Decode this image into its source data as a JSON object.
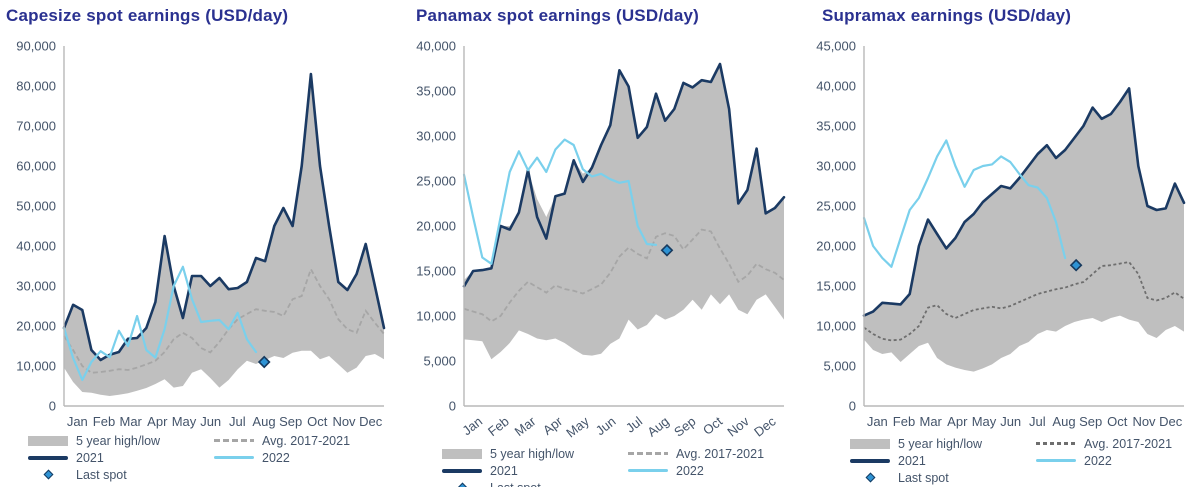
{
  "colors": {
    "title": "#2a3190",
    "axis_text": "#44546a",
    "axis_line": "#b8b8b8",
    "legend_text": "#44546a"
  },
  "legend": {
    "high_low": "5 year high/low",
    "avg": "Avg. 2017-2021",
    "y2021": "2021",
    "y2022": "2022",
    "last_spot": "Last spot"
  },
  "chart_data": [
    {
      "name": "capesize",
      "type": "line",
      "title": "Capesize spot earnings (USD/day)",
      "ylabel": "USD/day",
      "ylim": [
        0,
        90000
      ],
      "y_tick_step": 10000,
      "grid": false,
      "legend_position": "bottom",
      "x_label_style": "horizontal",
      "categories": [
        "Jan",
        "Feb",
        "Mar",
        "Apr",
        "May",
        "Jun",
        "Jul",
        "Aug",
        "Sep",
        "Oct",
        "Nov",
        "Dec"
      ],
      "series": [
        {
          "name": "5 year high/low",
          "kind": "band",
          "color": "#bfbfbf",
          "high": [
            19500,
            25300,
            24000,
            14000,
            11500,
            12800,
            13500,
            16800,
            17000,
            19500,
            26000,
            42500,
            30000,
            22000,
            32500,
            32500,
            30000,
            32000,
            29200,
            29500,
            31000,
            37000,
            36200,
            45000,
            49500,
            45000,
            60000,
            83000,
            60000,
            45000,
            31000,
            29000,
            33000,
            40500,
            30000,
            19500
          ],
          "low": [
            9600,
            6000,
            3500,
            3300,
            2800,
            2500,
            2800,
            3200,
            3800,
            4500,
            5500,
            6700,
            4600,
            5000,
            8300,
            9200,
            7000,
            4600,
            6500,
            9200,
            11300,
            10500,
            11500,
            12500,
            12000,
            13300,
            13800,
            13800,
            11700,
            12500,
            10400,
            8300,
            9600,
            12500,
            13000,
            11700
          ]
        },
        {
          "name": "Avg. 2017-2021",
          "kind": "dashed",
          "color": "#a6a6a6",
          "dash": "5 3",
          "values": [
            17500,
            14000,
            10000,
            8300,
            8500,
            8800,
            9200,
            9000,
            9600,
            10400,
            11300,
            13500,
            16700,
            18300,
            17000,
            14500,
            13400,
            16000,
            19200,
            21700,
            23000,
            24200,
            23800,
            23500,
            22500,
            26700,
            27500,
            34200,
            30000,
            26700,
            21700,
            19200,
            18300,
            23800,
            20800,
            18000
          ]
        },
        {
          "name": "2021",
          "kind": "line",
          "color": "#1b3a63",
          "values": [
            19500,
            25300,
            24000,
            14000,
            11500,
            12800,
            13500,
            16800,
            17000,
            19500,
            26000,
            42500,
            30000,
            22000,
            32500,
            32500,
            30000,
            32000,
            29200,
            29500,
            31000,
            37000,
            36200,
            45000,
            49500,
            45000,
            60000,
            83000,
            60000,
            45000,
            31000,
            29000,
            33000,
            40500,
            30000,
            19500
          ]
        },
        {
          "name": "2022",
          "kind": "line",
          "color": "#7ad0ec",
          "values": [
            19500,
            12000,
            6500,
            11000,
            13700,
            12200,
            18800,
            15000,
            22500,
            14000,
            12100,
            19200,
            30000,
            34800,
            26700,
            21000,
            21300,
            21500,
            19200,
            23300,
            16700,
            13500,
            null,
            null,
            null,
            null,
            null,
            null,
            null,
            null,
            null,
            null,
            null,
            null,
            null,
            null
          ]
        },
        {
          "name": "Last spot",
          "kind": "point",
          "color": "#2e93d4",
          "stroke": "#173a5e",
          "x_index": 21.9,
          "value": 11000
        }
      ]
    },
    {
      "name": "panamax",
      "type": "line",
      "title": "Panamax spot earnings (USD/day)",
      "ylabel": "USD/day",
      "ylim": [
        0,
        40000
      ],
      "y_tick_step": 5000,
      "grid": false,
      "legend_position": "bottom",
      "x_label_style": "rotated",
      "categories": [
        "Jan",
        "Feb",
        "Mar",
        "Apr",
        "May",
        "Jun",
        "Jul",
        "Aug",
        "Sep",
        "Oct",
        "Nov",
        "Dec"
      ],
      "series": [
        {
          "name": "5 year high/low",
          "kind": "band",
          "color": "#bfbfbf",
          "high": [
            14000,
            15000,
            15100,
            15300,
            20000,
            20000,
            21500,
            26200,
            23000,
            21000,
            23300,
            23600,
            27300,
            25800,
            26500,
            29000,
            31200,
            37300,
            35500,
            30000,
            31000,
            34700,
            31700,
            33000,
            35900,
            35400,
            36200,
            36000,
            38000,
            33000,
            22500,
            24000,
            28600,
            21400,
            22000,
            23200
          ],
          "low": [
            7400,
            7300,
            7200,
            5200,
            6000,
            7000,
            8400,
            8000,
            7500,
            7300,
            7500,
            7000,
            6300,
            5700,
            5600,
            5800,
            6900,
            7500,
            9600,
            8500,
            9000,
            10200,
            9600,
            10000,
            10700,
            11800,
            10700,
            12400,
            11300,
            12400,
            10700,
            10200,
            11800,
            12400,
            11000,
            9600
          ]
        },
        {
          "name": "Avg. 2017-2021",
          "kind": "dashed",
          "color": "#a6a6a6",
          "dash": "5 3",
          "values": [
            10800,
            10500,
            10200,
            9400,
            10000,
            11500,
            12800,
            13800,
            13200,
            12600,
            13400,
            13000,
            12800,
            12500,
            13000,
            13500,
            14800,
            16600,
            17600,
            16900,
            16400,
            18800,
            19200,
            18900,
            17400,
            18500,
            19600,
            19400,
            17500,
            15800,
            13800,
            14500,
            15800,
            15200,
            14800,
            14000
          ]
        },
        {
          "name": "2021",
          "kind": "line",
          "color": "#1b3a63",
          "values": [
            13300,
            15000,
            15100,
            15300,
            20000,
            19600,
            21500,
            26200,
            21000,
            18600,
            23300,
            23600,
            27300,
            24900,
            26500,
            29000,
            31200,
            37300,
            35500,
            29800,
            31000,
            34700,
            31700,
            33000,
            35900,
            35400,
            36200,
            36000,
            38000,
            33000,
            22500,
            24000,
            28600,
            21400,
            22000,
            23200
          ]
        },
        {
          "name": "2022",
          "kind": "line",
          "color": "#7ad0ec",
          "values": [
            25700,
            21000,
            16500,
            15800,
            21000,
            26000,
            28300,
            26200,
            27600,
            26000,
            28500,
            29600,
            29000,
            26300,
            25500,
            25800,
            25200,
            24800,
            25000,
            20000,
            18000,
            17900,
            null,
            null,
            null,
            null,
            null,
            null,
            null,
            null,
            null,
            null,
            null,
            null,
            null,
            null
          ]
        },
        {
          "name": "Last spot",
          "kind": "point",
          "color": "#2e93d4",
          "stroke": "#173a5e",
          "x_index": 22.2,
          "value": 17300
        }
      ]
    },
    {
      "name": "supramax",
      "type": "line",
      "title": "Supramax earnings (USD/day)",
      "ylabel": "USD/day",
      "ylim": [
        0,
        45000
      ],
      "y_tick_step": 5000,
      "grid": false,
      "legend_position": "bottom",
      "x_label_style": "horizontal",
      "categories": [
        "Jan",
        "Feb",
        "Mar",
        "Apr",
        "May",
        "Jun",
        "Jul",
        "Aug",
        "Sep",
        "Oct",
        "Nov",
        "Dec"
      ],
      "series": [
        {
          "name": "5 year high/low",
          "kind": "band",
          "color": "#bfbfbf",
          "high": [
            11300,
            11800,
            12900,
            12800,
            12700,
            14000,
            20000,
            23300,
            21500,
            19700,
            21000,
            23000,
            24000,
            25500,
            26500,
            27500,
            27200,
            28500,
            30000,
            31500,
            32600,
            31000,
            32000,
            33500,
            35000,
            37300,
            35900,
            36500,
            38000,
            39700,
            30000,
            25000,
            24500,
            24700,
            27800,
            25400
          ],
          "low": [
            8300,
            7000,
            6500,
            6700,
            5500,
            6500,
            7500,
            7900,
            6000,
            5200,
            4800,
            4500,
            4300,
            4700,
            5200,
            6000,
            6500,
            7500,
            8000,
            9000,
            9500,
            9300,
            10000,
            10500,
            10800,
            11000,
            10500,
            11000,
            11300,
            10800,
            10500,
            9000,
            8500,
            9500,
            10000,
            9300
          ]
        },
        {
          "name": "Avg. 2017-2021",
          "kind": "dashed",
          "color": "#6e6e6e",
          "dash": "3 2.5",
          "values": [
            9800,
            9000,
            8400,
            8200,
            8300,
            9000,
            10000,
            12300,
            12600,
            11500,
            11000,
            11500,
            12000,
            12200,
            12400,
            12200,
            12500,
            13000,
            13500,
            14000,
            14300,
            14600,
            14800,
            15200,
            15500,
            16500,
            17500,
            17600,
            17800,
            18000,
            16500,
            13500,
            13200,
            13500,
            14200,
            13400
          ]
        },
        {
          "name": "2021",
          "kind": "line",
          "color": "#1b3a63",
          "values": [
            11300,
            11800,
            12900,
            12800,
            12700,
            14000,
            20000,
            23300,
            21500,
            19700,
            21000,
            23000,
            24000,
            25500,
            26500,
            27500,
            27200,
            28500,
            30000,
            31500,
            32600,
            31000,
            32000,
            33500,
            35000,
            37300,
            35900,
            36500,
            38000,
            39700,
            30000,
            25000,
            24500,
            24700,
            27800,
            25400
          ]
        },
        {
          "name": "2022",
          "kind": "line",
          "color": "#7ad0ec",
          "values": [
            23500,
            20000,
            18500,
            17400,
            21000,
            24500,
            26000,
            28500,
            31200,
            33200,
            30000,
            27400,
            29500,
            30000,
            30200,
            31200,
            30500,
            29000,
            27600,
            27300,
            26000,
            23000,
            18500,
            null,
            null,
            null,
            null,
            null,
            null,
            null,
            null,
            null,
            null,
            null,
            null,
            null
          ]
        },
        {
          "name": "Last spot",
          "kind": "point",
          "color": "#2e93d4",
          "stroke": "#173a5e",
          "x_index": 23.2,
          "value": 17600
        }
      ]
    }
  ]
}
